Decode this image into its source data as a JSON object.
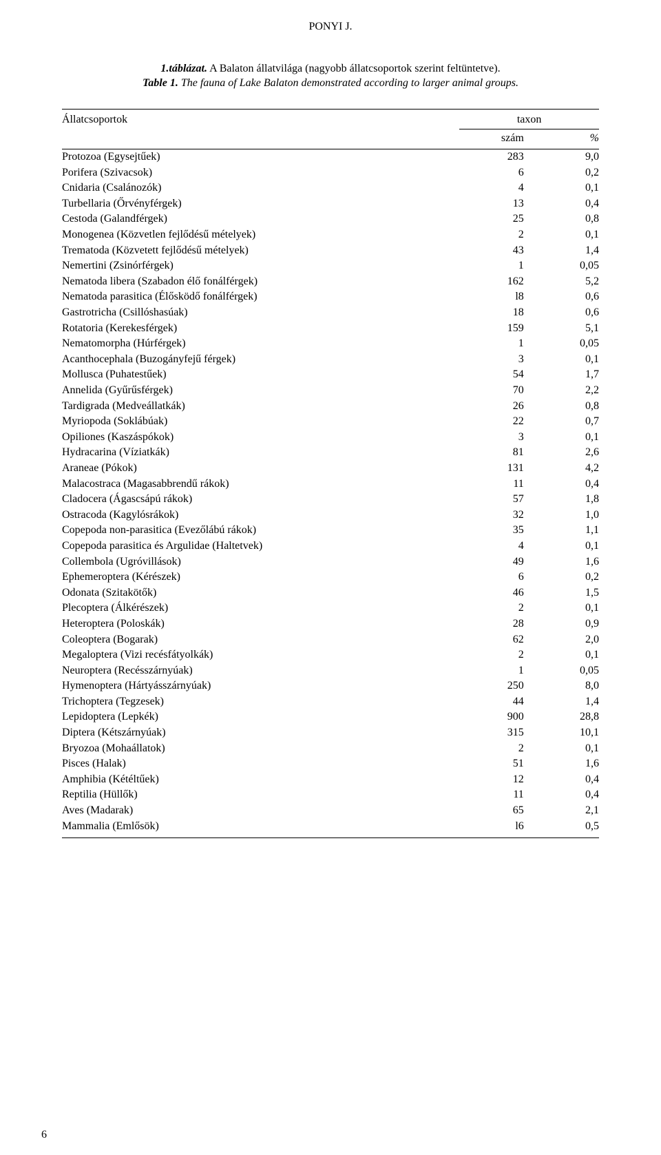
{
  "header": {
    "author": "PONYI J."
  },
  "caption": {
    "line1_bold": "1.táblázat.",
    "line1_rest": " A Balaton állatvilága (nagyobb állatcsoportok szerint feltüntetve).",
    "line2_bold": "Table 1.",
    "line2_rest": " The fauna of Lake Balaton demonstrated according to larger animal groups."
  },
  "table": {
    "col1_header": "Állatcsoportok",
    "group_header": "taxon",
    "sub_headers": {
      "num": "szám",
      "pct": "%"
    },
    "rows": [
      {
        "name": "Protozoa (Egysejtűek)",
        "num": "283",
        "pct": "9,0"
      },
      {
        "name": "Porifera (Szivacsok)",
        "num": "6",
        "pct": "0,2"
      },
      {
        "name": "Cnidaria (Csalánozók)",
        "num": "4",
        "pct": "0,1"
      },
      {
        "name": "Turbellaria (Őrvényférgek)",
        "num": "13",
        "pct": "0,4"
      },
      {
        "name": "Cestoda (Galandférgek)",
        "num": "25",
        "pct": "0,8"
      },
      {
        "name": "Monogenea (Közvetlen fejlődésű mételyek)",
        "num": "2",
        "pct": "0,1"
      },
      {
        "name": "Trematoda (Közvetett fejlődésű mételyek)",
        "num": "43",
        "pct": "1,4"
      },
      {
        "name": "Nemertini (Zsinórférgek)",
        "num": "1",
        "pct": "0,05"
      },
      {
        "name": "Nematoda libera (Szabadon élő fonálférgek)",
        "num": "162",
        "pct": "5,2"
      },
      {
        "name": "Nematoda parasitica (Élősködő fonálférgek)",
        "num": "l8",
        "pct": "0,6"
      },
      {
        "name": "Gastrotricha (Csillóshasúak)",
        "num": "18",
        "pct": "0,6"
      },
      {
        "name": "Rotatoria (Kerekesférgek)",
        "num": "159",
        "pct": "5,1"
      },
      {
        "name": "Nematomorpha (Húrférgek)",
        "num": "1",
        "pct": "0,05"
      },
      {
        "name": "Acanthocephala (Buzogányfejű férgek)",
        "num": "3",
        "pct": "0,1"
      },
      {
        "name": "Mollusca (Puhatestűek)",
        "num": "54",
        "pct": "1,7"
      },
      {
        "name": "Annelida (Gyűrűsférgek)",
        "num": "70",
        "pct": "2,2"
      },
      {
        "name": "Tardigrada (Medveállatkák)",
        "num": "26",
        "pct": "0,8"
      },
      {
        "name": "Myriopoda (Soklábúak)",
        "num": "22",
        "pct": "0,7"
      },
      {
        "name": "Opiliones (Kaszáspókok)",
        "num": "3",
        "pct": "0,1"
      },
      {
        "name": "Hydracarina (Víziatkák)",
        "num": "81",
        "pct": "2,6"
      },
      {
        "name": "Araneae (Pókok)",
        "num": "131",
        "pct": "4,2"
      },
      {
        "name": "Malacostraca (Magasabbrendű rákok)",
        "num": "11",
        "pct": "0,4"
      },
      {
        "name": "Cladocera (Ágascsápú rákok)",
        "num": "57",
        "pct": "1,8"
      },
      {
        "name": "Ostracoda (Kagylósrákok)",
        "num": "32",
        "pct": "1,0"
      },
      {
        "name": "Copepoda non-parasitica (Evezőlábú rákok)",
        "num": "35",
        "pct": "1,1"
      },
      {
        "name": "Copepoda parasitica és Argulidae (Haltetvek)",
        "num": "4",
        "pct": "0,1"
      },
      {
        "name": "Collembola (Ugróvillások)",
        "num": "49",
        "pct": "1,6"
      },
      {
        "name": "Ephemeroptera (Kérészek)",
        "num": "6",
        "pct": "0,2"
      },
      {
        "name": "Odonata (Szitakötők)",
        "num": "46",
        "pct": "1,5"
      },
      {
        "name": "Plecoptera (Álkérészek)",
        "num": "2",
        "pct": "0,1"
      },
      {
        "name": "Heteroptera (Poloskák)",
        "num": "28",
        "pct": "0,9"
      },
      {
        "name": "Coleoptera (Bogarak)",
        "num": "62",
        "pct": "2,0"
      },
      {
        "name": "Megaloptera (Vizi recésfátyolkák)",
        "num": "2",
        "pct": "0,1"
      },
      {
        "name": "Neuroptera (Recésszárnyúak)",
        "num": "1",
        "pct": "0,05"
      },
      {
        "name": "Hymenoptera (Hártyásszárnyúak)",
        "num": "250",
        "pct": "8,0"
      },
      {
        "name": "Trichoptera (Tegzesek)",
        "num": "44",
        "pct": "1,4"
      },
      {
        "name": "Lepidoptera (Lepkék)",
        "num": "900",
        "pct": "28,8"
      },
      {
        "name": "Diptera (Kétszárnyúak)",
        "num": "315",
        "pct": "10,1"
      },
      {
        "name": "Bryozoa (Mohaállatok)",
        "num": "2",
        "pct": "0,1"
      },
      {
        "name": "Pisces (Halak)",
        "num": "51",
        "pct": "1,6"
      },
      {
        "name": "Amphibia (Kétéltűek)",
        "num": "12",
        "pct": "0,4"
      },
      {
        "name": "Reptilia (Hüllők)",
        "num": "11",
        "pct": "0,4"
      },
      {
        "name": "Aves (Madarak)",
        "num": "65",
        "pct": "2,1"
      },
      {
        "name": "Mammalia (Emlősök)",
        "num": "l6",
        "pct": "0,5"
      }
    ]
  },
  "page_number": "6"
}
